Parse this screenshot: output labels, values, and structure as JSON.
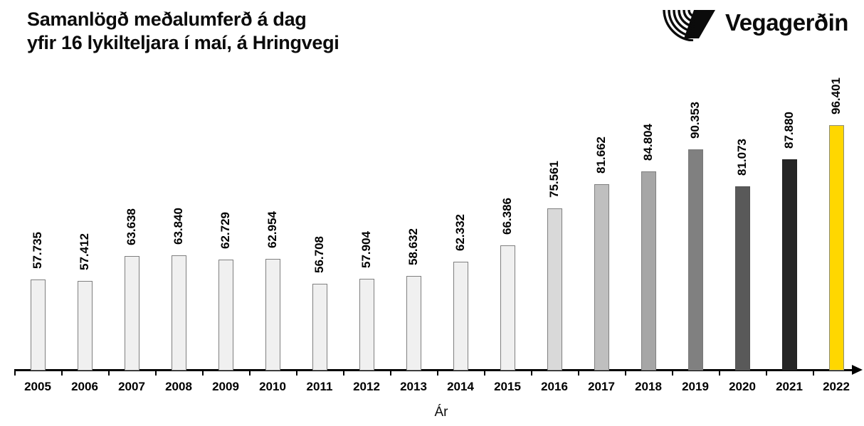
{
  "header": {
    "title_line1": "Samanlögð meðalumferð á dag",
    "title_line2": "yfir 16 lykilteljara í maí, á Hringvegi",
    "logo_text": "Vegagerðin"
  },
  "chart_data": {
    "type": "bar",
    "title": "Samanlögð meðalumferð á dag yfir 16 lykilteljara í maí, á Hringvegi",
    "xlabel": "Ár",
    "ylabel": "",
    "categories": [
      "2005",
      "2006",
      "2007",
      "2008",
      "2009",
      "2010",
      "2011",
      "2012",
      "2013",
      "2014",
      "2015",
      "2016",
      "2017",
      "2018",
      "2019",
      "2020",
      "2021",
      "2022"
    ],
    "values": [
      57735,
      57412,
      63638,
      63840,
      62729,
      62954,
      56708,
      57904,
      58632,
      62332,
      66386,
      75561,
      81662,
      84804,
      90353,
      81073,
      87880,
      96401
    ],
    "value_labels": [
      "57.735",
      "57.412",
      "63.638",
      "63.840",
      "62.729",
      "62.954",
      "56.708",
      "57.904",
      "58.632",
      "62.332",
      "66.386",
      "75.561",
      "81.662",
      "84.804",
      "90.353",
      "81.073",
      "87.880",
      "96.401"
    ],
    "ylim": [
      35000,
      97000
    ],
    "grid": false,
    "legend": "none",
    "y_axis_visible": false,
    "value_label_rotation": -90,
    "bar_fill_colors": [
      "#F0F0F0",
      "#F0F0F0",
      "#F0F0F0",
      "#F0F0F0",
      "#F0F0F0",
      "#F0F0F0",
      "#F0F0F0",
      "#F0F0F0",
      "#F0F0F0",
      "#F0F0F0",
      "#F0F0F0",
      "#D9D9D9",
      "#BFBFBF",
      "#A6A6A6",
      "#808080",
      "#595959",
      "#262626",
      "#FFD700"
    ],
    "bar_border_colors": [
      "#7F7F7F",
      "#7F7F7F",
      "#7F7F7F",
      "#7F7F7F",
      "#7F7F7F",
      "#7F7F7F",
      "#7F7F7F",
      "#7F7F7F",
      "#7F7F7F",
      "#7F7F7F",
      "#7F7F7F",
      "#7F7F7F",
      "#7F7F7F",
      "#7F7F7F",
      "#787878",
      "#525252",
      "#202020",
      "#8C8C78"
    ],
    "highlight_category": "2022",
    "highlight_color": "#FFD700",
    "axis_color": "#000000",
    "text_color": "#000000",
    "background_color": "#FFFFFF"
  }
}
